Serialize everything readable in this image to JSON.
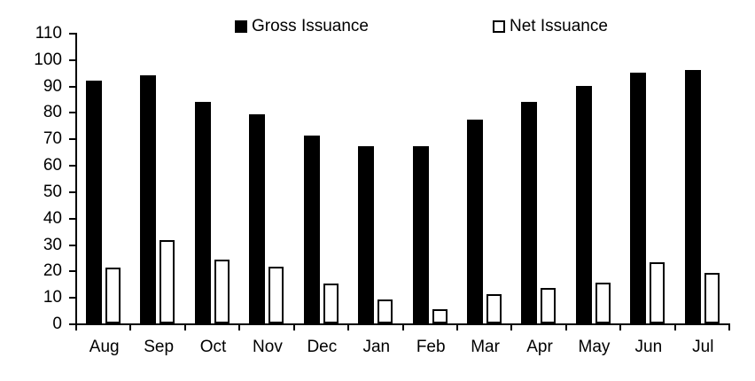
{
  "chart_data": {
    "type": "bar",
    "categories": [
      "Aug",
      "Sep",
      "Oct",
      "Nov",
      "Dec",
      "Jan",
      "Feb",
      "Mar",
      "Apr",
      "May",
      "Jun",
      "Jul"
    ],
    "series": [
      {
        "name": "Gross Issuance",
        "style": "filled",
        "fill": "#000000",
        "values": [
          92,
          94,
          84,
          79,
          71,
          67,
          67,
          77,
          84,
          90,
          95,
          96
        ]
      },
      {
        "name": "Net Issuance",
        "style": "outlined",
        "fill": "#ffffff",
        "outline": "#000000",
        "values": [
          21,
          31.5,
          24,
          21.5,
          15,
          9,
          5.5,
          11,
          13.5,
          15.5,
          23,
          19
        ]
      }
    ],
    "title": "",
    "xlabel": "",
    "ylabel": "",
    "ylim": [
      0,
      110
    ],
    "yticks": [
      0,
      10,
      20,
      30,
      40,
      50,
      60,
      70,
      80,
      90,
      100,
      110
    ],
    "grid": false,
    "legend_position": "top"
  },
  "colors": {
    "axis": "#000000",
    "text": "#000000",
    "background": "#ffffff",
    "bar_fill": "#000000",
    "bar_outline": "#000000"
  }
}
